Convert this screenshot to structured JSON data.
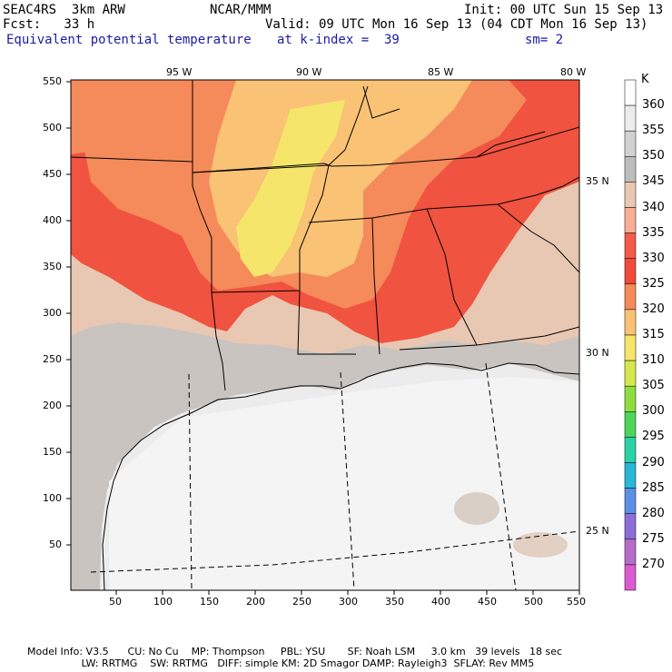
{
  "header": {
    "line1_left": "SEAC4RS  3km ARW",
    "line1_center": "NCAR/MMM",
    "line1_right": "Init: 00 UTC Sun 15 Sep 13",
    "line2_left": "Fcst:   33 h",
    "line2_right": "Valid: 09 UTC Mon 16 Sep 13 (04 CDT Mon 16 Sep 13)",
    "line3_field": "Equivalent potential temperature",
    "line3_level": "at k-index =  39",
    "line3_smooth": "sm= 2"
  },
  "map": {
    "lon_labels": [
      "95 W",
      "90 W",
      "85 W",
      "80 W"
    ],
    "lat_labels": [
      "35 N",
      "30 N",
      "25 N"
    ],
    "x_ticks": [
      "50",
      "100",
      "150",
      "200",
      "250",
      "300",
      "350",
      "400",
      "450",
      "500",
      "550"
    ],
    "y_ticks": [
      "550",
      "500",
      "450",
      "400",
      "350",
      "300",
      "250",
      "200",
      "150",
      "100",
      "50"
    ],
    "x_range": [
      0,
      550
    ],
    "y_range": [
      0,
      550
    ]
  },
  "colorbar": {
    "unit": "K",
    "levels": [
      "360",
      "355",
      "350",
      "345",
      "340",
      "335",
      "330",
      "325",
      "320",
      "315",
      "310",
      "305",
      "300",
      "295",
      "290",
      "285",
      "280",
      "275",
      "270"
    ],
    "colors": [
      "#ffffff",
      "#ececec",
      "#d2d2d2",
      "#bdbdbd",
      "#e8c8b2",
      "#f9ae96",
      "#f45a4a",
      "#f04b3a",
      "#f58a5a",
      "#f9c275",
      "#f5e66b",
      "#d4e84e",
      "#8fdc3f",
      "#4dd55a",
      "#2bd2a6",
      "#29b7d6",
      "#5c8fe6",
      "#8d6ed8",
      "#b56dc7",
      "#dd5bd0"
    ]
  },
  "footer": {
    "line1": "Model Info: V3.5      CU: No Cu    MP: Thompson     PBL: YSU       SF: Noah LSM     3.0 km   39 levels   18 sec",
    "line2": "                 LW: RRTMG    SW: RRTMG   DIFF: simple KM: 2D Smagor DAMP: Rayleigh3  SFLAY: Rev MM5"
  }
}
